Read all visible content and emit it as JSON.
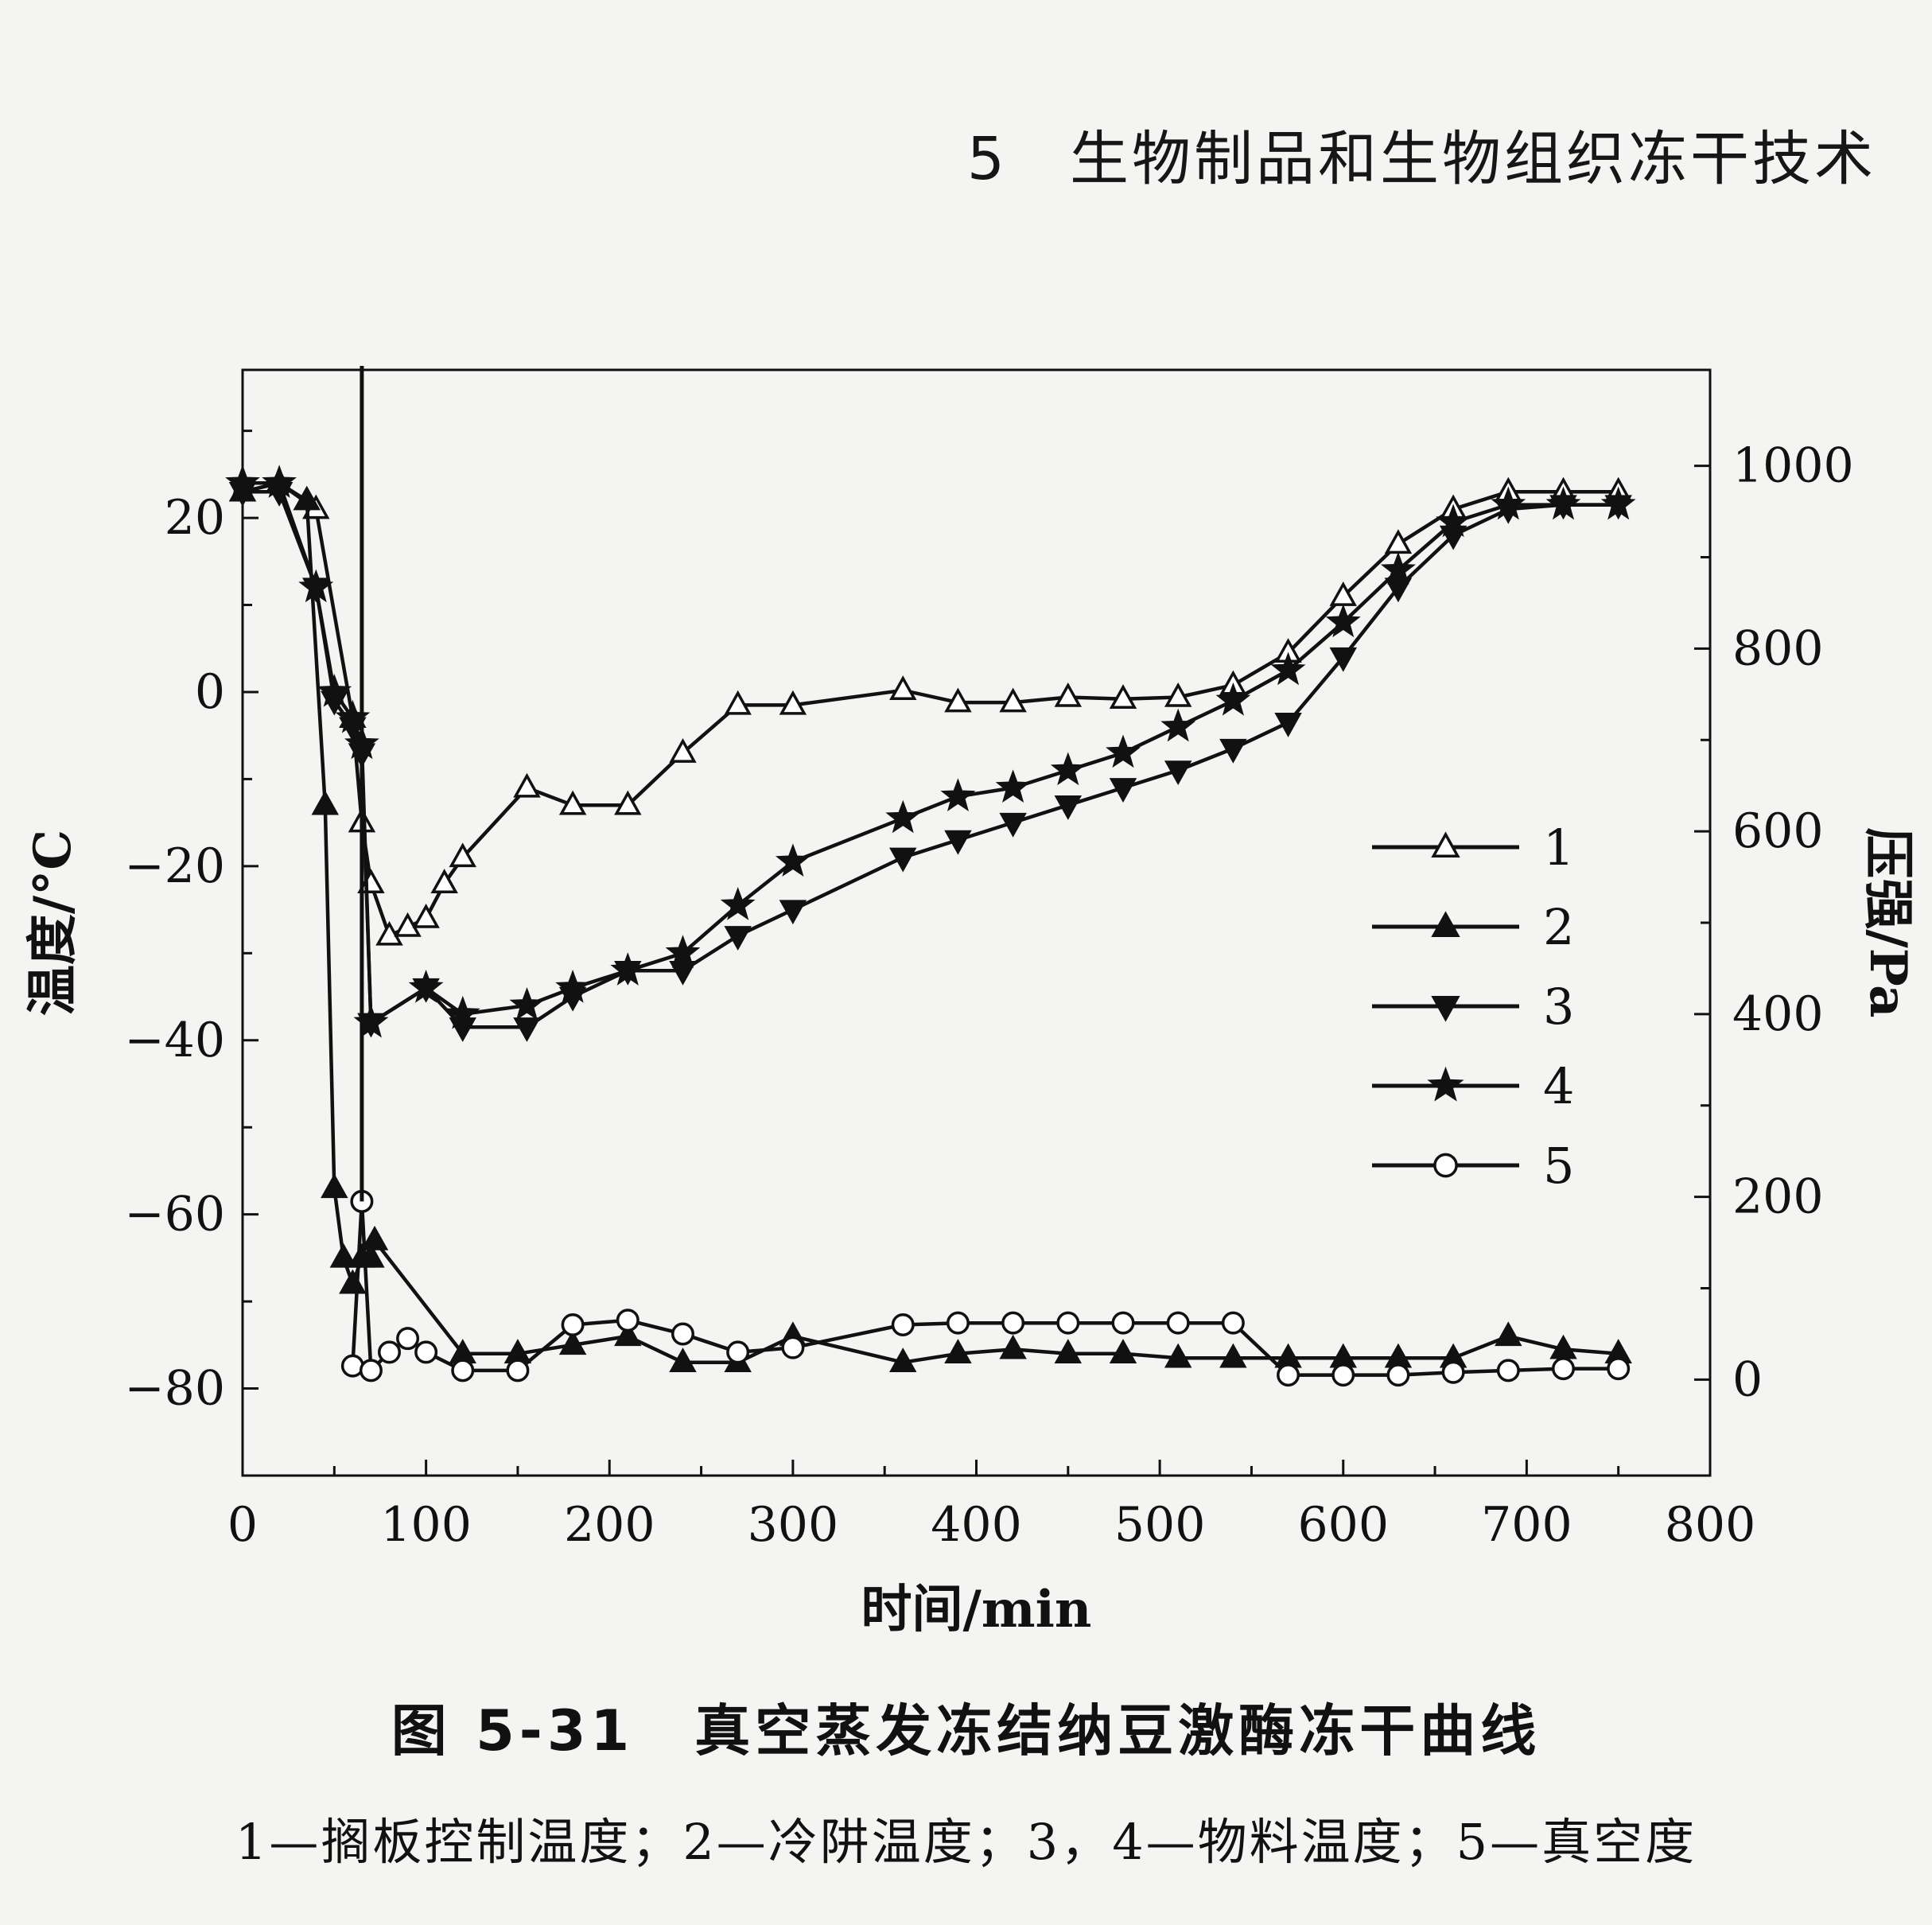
{
  "header": {
    "running_title": "5　生物制品和生物组织冻干技术"
  },
  "caption": {
    "title": "图 5-31　真空蒸发冻结纳豆激酶冻干曲线",
    "note": "1—搁板控制温度；2—冷阱温度；3，4—物料温度；5—真空度"
  },
  "chart_data": {
    "type": "line",
    "xlabel": "时间/min",
    "ylabel_left": "温度/°C",
    "ylabel_right": "压强/Pa",
    "xlim": [
      0,
      800
    ],
    "ylim_left": [
      -90,
      37
    ],
    "ylim_right": [
      -105,
      1105
    ],
    "x_ticks": [
      0,
      100,
      200,
      300,
      400,
      500,
      600,
      700,
      800
    ],
    "y_left_ticks": [
      20,
      0,
      -20,
      -40,
      -60,
      -80
    ],
    "y_right_ticks": [
      0,
      200,
      400,
      600,
      800,
      1000
    ],
    "legend_position": "right",
    "grid": false,
    "series": [
      {
        "name": "1",
        "marker": "triangle-up-open",
        "axis": "left",
        "x": [
          0,
          20,
          40,
          60,
          65,
          70,
          80,
          90,
          100,
          110,
          120,
          155,
          180,
          210,
          240,
          270,
          300,
          360,
          390,
          420,
          450,
          480,
          510,
          540,
          570,
          600,
          630,
          660,
          690,
          720,
          750
        ],
        "y": [
          23,
          24,
          21,
          -3,
          -15,
          -22,
          -28,
          -27,
          -26,
          -22,
          -19,
          -11,
          -13,
          -13,
          -7,
          -1.5,
          -1.5,
          0.2,
          -1.2,
          -1.2,
          -0.6,
          -0.8,
          -0.6,
          0.8,
          4.5,
          11,
          17,
          21,
          23,
          23,
          23
        ]
      },
      {
        "name": "2",
        "marker": "triangle-up-filled",
        "axis": "left",
        "x": [
          0,
          20,
          35,
          45,
          50,
          55,
          60,
          65,
          70,
          72,
          120,
          150,
          180,
          210,
          240,
          270,
          300,
          360,
          390,
          420,
          450,
          480,
          510,
          540,
          570,
          600,
          630,
          660,
          690,
          720,
          750
        ],
        "y": [
          23,
          24,
          22,
          -13,
          -57,
          -65,
          -68,
          -65,
          -65,
          -63,
          -76,
          -76,
          -75,
          -74,
          -77,
          -77,
          -74,
          -77,
          -76,
          -75.5,
          -76,
          -76,
          -76.5,
          -76.5,
          -76.5,
          -76.5,
          -76.5,
          -76.5,
          -74,
          -75.5,
          -76
        ]
      },
      {
        "name": "3",
        "marker": "triangle-down-filled",
        "axis": "left",
        "x": [
          0,
          20,
          40,
          50,
          60,
          65,
          70,
          100,
          120,
          155,
          180,
          210,
          240,
          270,
          300,
          360,
          390,
          420,
          450,
          480,
          510,
          540,
          570,
          600,
          630,
          660,
          690,
          720,
          750
        ],
        "y": [
          23,
          23,
          12,
          -1,
          -4,
          -7,
          -38,
          -34,
          -38.5,
          -38.5,
          -35,
          -32,
          -32,
          -28,
          -25,
          -19,
          -17,
          -15,
          -13,
          -11,
          -9,
          -6.5,
          -3.5,
          4,
          12,
          18,
          21,
          21.5,
          21.5
        ]
      },
      {
        "name": "4",
        "marker": "star-filled",
        "axis": "left",
        "x": [
          0,
          20,
          40,
          50,
          60,
          65,
          70,
          100,
          120,
          155,
          180,
          210,
          240,
          270,
          300,
          360,
          390,
          420,
          450,
          480,
          510,
          540,
          570,
          600,
          630,
          660,
          690,
          720,
          750
        ],
        "y": [
          24,
          24,
          12,
          0,
          -3,
          -6,
          -38,
          -34,
          -37,
          -36,
          -34,
          -32,
          -30,
          -24.5,
          -19.5,
          -14.5,
          -12,
          -11,
          -9,
          -7,
          -4,
          -1,
          2.5,
          8,
          14,
          19.5,
          21.5,
          21.5,
          21.5
        ]
      },
      {
        "name": "5",
        "marker": "circle-open",
        "axis": "right",
        "x": [
          60,
          65,
          70,
          80,
          90,
          100,
          120,
          150,
          180,
          210,
          240,
          270,
          300,
          360,
          390,
          420,
          450,
          480,
          510,
          540,
          570,
          600,
          630,
          660,
          690,
          720,
          750
        ],
        "y": [
          15,
          195,
          10,
          30,
          45,
          30,
          10,
          10,
          60,
          65,
          50,
          30,
          35,
          60,
          62,
          62,
          62,
          62,
          62,
          62,
          5,
          5,
          5,
          8,
          10,
          12,
          12
        ]
      }
    ]
  }
}
